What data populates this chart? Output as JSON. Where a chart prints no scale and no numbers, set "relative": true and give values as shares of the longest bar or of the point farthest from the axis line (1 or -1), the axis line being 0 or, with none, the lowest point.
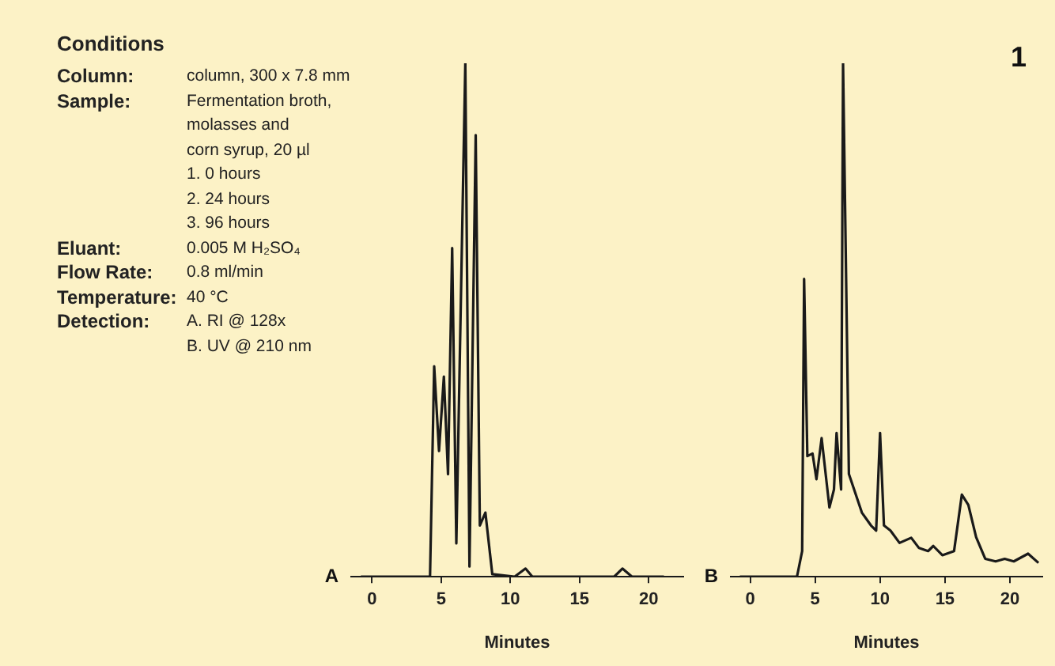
{
  "chart_data": [
    {
      "type": "other",
      "title": "Conditions",
      "annotations": [
        "Column:\tcolumn, 300 x 7.8 mm",
        "Sample:\tFermentation broth,",
        "\tmolasses and",
        "\tcorn syrup, 20 µl",
        "\t1.  0 hours",
        "\t2.  24 hours",
        "\t3.  96 hours",
        "Eluant:\t0.005 M H₂SO₄",
        "Flow Rate:\t0.8 ml/min",
        "Temperature:\t40 °C",
        "Detection:\tA.  RI @ 128x",
        "\tB.  UV @ 210 nm"
      ]
    },
    {
      "type": "line",
      "title": "A",
      "relative": true,
      "xlabel": "Minutes",
      "xlim": [
        -1.5,
        22.5
      ],
      "xticks": [
        0,
        5,
        10,
        15,
        20
      ],
      "grid": false,
      "color": "#1a1a1a",
      "x": [
        -0.8,
        4.2,
        4.5,
        4.85,
        5.2,
        5.5,
        5.8,
        6.1,
        6.75,
        7.05,
        7.5,
        7.8,
        8.2,
        8.7,
        10.3,
        11.1,
        11.6,
        17.5,
        18.1,
        18.8,
        21.1
      ],
      "values": [
        0,
        0,
        0.41,
        0.245,
        0.39,
        0.2,
        0.64,
        0.065,
        1.0,
        0.02,
        0.86,
        0.1,
        0.125,
        0.005,
        0,
        0.016,
        0,
        0,
        0.016,
        0,
        0
      ]
    },
    {
      "type": "line",
      "title": "B",
      "relative": true,
      "xlabel": "Minutes",
      "xlim": [
        -1.5,
        22.5
      ],
      "xticks": [
        0,
        5,
        10,
        15,
        20
      ],
      "grid": false,
      "color": "#1a1a1a",
      "annotations": [
        "1"
      ],
      "x": [
        -0.8,
        3.6,
        4.0,
        4.15,
        4.4,
        4.8,
        5.1,
        5.5,
        6.1,
        6.45,
        6.65,
        7.0,
        7.15,
        7.6,
        8.6,
        9.3,
        9.7,
        10.0,
        10.3,
        10.8,
        11.5,
        12.4,
        13.0,
        13.7,
        14.1,
        14.8,
        15.7,
        16.3,
        16.8,
        17.4,
        18.1,
        18.9,
        19.6,
        20.3,
        21.4,
        22.2
      ],
      "values": [
        0,
        0,
        0.05,
        0.58,
        0.235,
        0.24,
        0.19,
        0.27,
        0.135,
        0.17,
        0.28,
        0.17,
        1.0,
        0.2,
        0.125,
        0.1,
        0.09,
        0.28,
        0.1,
        0.09,
        0.066,
        0.076,
        0.056,
        0.05,
        0.06,
        0.042,
        0.05,
        0.16,
        0.14,
        0.077,
        0.035,
        0.03,
        0.035,
        0.03,
        0.045,
        0.027
      ]
    }
  ]
}
